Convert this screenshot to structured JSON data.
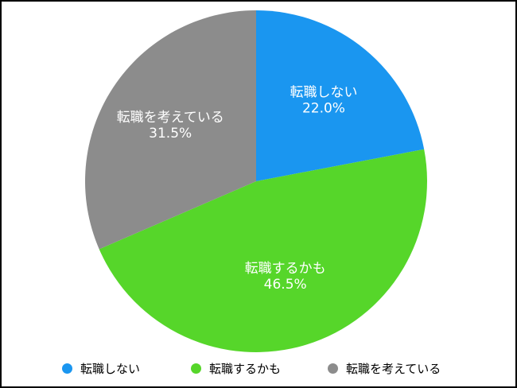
{
  "chart_data": {
    "type": "pie",
    "categories": [
      "転職しない",
      "転職するかも",
      "転職を考えている"
    ],
    "values": [
      22.0,
      46.5,
      31.5
    ],
    "value_labels": [
      "22.0%",
      "46.5%",
      "31.5%"
    ],
    "colors": [
      "#1a96f0",
      "#56d62a",
      "#8c8c8c"
    ],
    "start_angle": "12 o'clock, clockwise",
    "legend_position": "bottom"
  }
}
